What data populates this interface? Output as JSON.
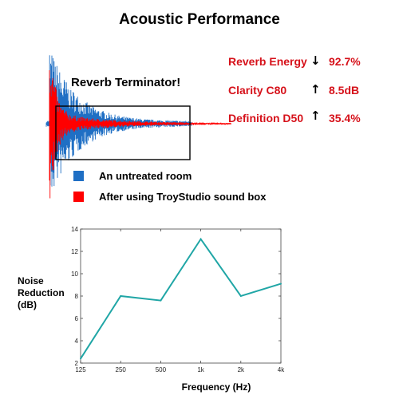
{
  "title": "Acoustic Performance",
  "waveform": {
    "label": "Reverb Terminator!",
    "untreated_color": "#1f6fc4",
    "treated_color": "#ff0000"
  },
  "stats": [
    {
      "name": "Reverb Energy",
      "direction": "↓",
      "value": "92.7%"
    },
    {
      "name": "Clarity C80",
      "direction": "↑",
      "value": "8.5dB"
    },
    {
      "name": "Definition D50",
      "direction": "↑",
      "value": "35.4%"
    }
  ],
  "legend": [
    {
      "label": "An untreated room",
      "color": "#1f6fc4"
    },
    {
      "label": "After using TroyStudio sound box",
      "color": "#ff0000"
    }
  ],
  "chart_data": {
    "type": "line",
    "categories": [
      "125",
      "250",
      "500",
      "1k",
      "2k",
      "4k"
    ],
    "series": [
      {
        "values": [
          2.4,
          8.0,
          7.6,
          13.1,
          8.0,
          9.1
        ],
        "color": "#20a6a6"
      }
    ],
    "ylim": [
      2,
      14
    ],
    "yticks": [
      "2",
      "4",
      "6",
      "8",
      "10",
      "12",
      "14"
    ],
    "xlabel": "Frequency (Hz)",
    "ylabel_lines": [
      "Noise",
      "Reduction",
      "(dB)"
    ],
    "grid": false
  }
}
